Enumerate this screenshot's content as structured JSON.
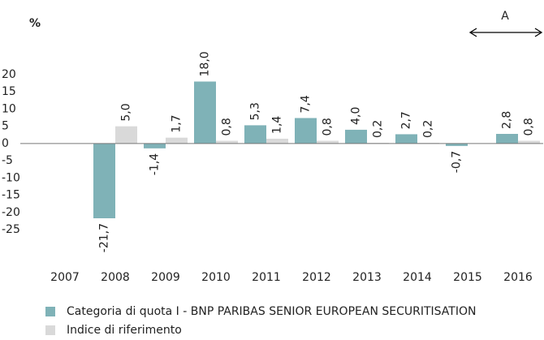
{
  "chart_data": {
    "type": "bar",
    "unit_label": "%",
    "annotation": "A",
    "categories": [
      "2007",
      "2008",
      "2009",
      "2010",
      "2011",
      "2012",
      "2013",
      "2014",
      "2015",
      "2016"
    ],
    "series": [
      {
        "name": "Categoria di quota I - BNP PARIBAS SENIOR EUROPEAN SECURITISATION",
        "color": "#7fb2b7",
        "values": [
          null,
          -21.7,
          -1.4,
          18.0,
          5.3,
          7.4,
          4.0,
          2.7,
          -0.7,
          2.8
        ],
        "value_labels": [
          null,
          "-21,7",
          "-1,4",
          "18,0",
          "5,3",
          "7,4",
          "4,0",
          "2,7",
          "-0,7",
          "2,8"
        ]
      },
      {
        "name": "Indice di riferimento",
        "color": "#d9d9d9",
        "values": [
          null,
          5.0,
          1.7,
          0.8,
          1.4,
          0.8,
          0.2,
          0.2,
          null,
          0.8
        ],
        "value_labels": [
          null,
          "5,0",
          "1,7",
          "0,8",
          "1,4",
          "0,8",
          "0,2",
          "0,2",
          null,
          "0,8"
        ]
      }
    ],
    "ylim": [
      -25,
      20
    ],
    "yticks": [
      20,
      15,
      10,
      5,
      0,
      -5,
      -10,
      -15,
      -20,
      -25
    ],
    "grid": false
  }
}
